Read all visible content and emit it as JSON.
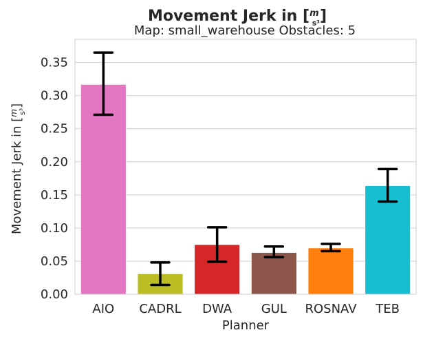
{
  "chart_data": {
    "type": "bar",
    "title": "Movement Jerk in [m/s³]",
    "title_prefix": "Movement Jerk in [",
    "title_unit_num": "m",
    "title_unit_den": "s³",
    "title_suffix": "]",
    "subtitle": "Map: small_warehouse Obstacles: 5",
    "xlabel": "Planner",
    "ylabel": "Movement Jerk in [m/s³]",
    "ylabel_prefix": "Movement Jerk in [",
    "ylabel_unit_num": "m",
    "ylabel_unit_den": "s³",
    "ylabel_suffix": "]",
    "categories": [
      "AIO",
      "CADRL",
      "DWA",
      "GUL",
      "ROSNAV",
      "TEB"
    ],
    "values": [
      0.317,
      0.031,
      0.075,
      0.063,
      0.07,
      0.164
    ],
    "error_low": [
      0.271,
      0.014,
      0.049,
      0.056,
      0.065,
      0.14
    ],
    "error_high": [
      0.365,
      0.048,
      0.101,
      0.072,
      0.076,
      0.189
    ],
    "colors": [
      "#e377c2",
      "#bcbd22",
      "#d62728",
      "#8c564b",
      "#ff7f0e",
      "#17becf"
    ],
    "ylim": [
      0,
      0.385
    ],
    "yticks": [
      0.0,
      0.05,
      0.1,
      0.15,
      0.2,
      0.25,
      0.3,
      0.35
    ],
    "ytick_labels": [
      "0.00",
      "0.05",
      "0.10",
      "0.15",
      "0.20",
      "0.25",
      "0.30",
      "0.35"
    ],
    "grid": "horizontal",
    "legend": "none"
  }
}
